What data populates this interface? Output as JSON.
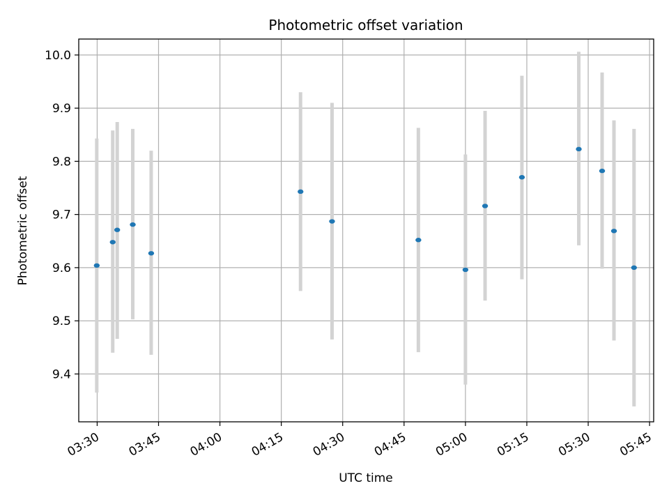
{
  "chart_data": {
    "type": "scatter",
    "title": "Photometric offset variation",
    "xlabel": "UTC time",
    "ylabel": "Photometric offset",
    "x_ticks": [
      "03:30",
      "03:45",
      "04:00",
      "04:15",
      "04:30",
      "04:45",
      "05:00",
      "05:15",
      "05:30",
      "05:45"
    ],
    "y_ticks": [
      "9.4",
      "9.5",
      "9.6",
      "9.7",
      "9.8",
      "9.9",
      "10.0"
    ],
    "xlim": [
      "03:25:30",
      "05:46:00"
    ],
    "ylim": [
      9.31,
      10.03
    ],
    "grid": true,
    "colors": {
      "point": "#1f77b4",
      "errorbar": "#d3d3d3",
      "grid": "#b0b0b0"
    },
    "series": [
      {
        "points": [
          {
            "x": "03:29:54",
            "y": 9.604,
            "ylow": 9.365,
            "yhigh": 9.843
          },
          {
            "x": "03:33:48",
            "y": 9.648,
            "ylow": 9.44,
            "yhigh": 9.858
          },
          {
            "x": "03:34:54",
            "y": 9.671,
            "ylow": 9.466,
            "yhigh": 9.874
          },
          {
            "x": "03:38:42",
            "y": 9.681,
            "ylow": 9.503,
            "yhigh": 9.861
          },
          {
            "x": "03:43:12",
            "y": 9.627,
            "ylow": 9.436,
            "yhigh": 9.82
          },
          {
            "x": "04:19:42",
            "y": 9.743,
            "ylow": 9.556,
            "yhigh": 9.93
          },
          {
            "x": "04:27:24",
            "y": 9.687,
            "ylow": 9.465,
            "yhigh": 9.91
          },
          {
            "x": "04:48:30",
            "y": 9.652,
            "ylow": 9.441,
            "yhigh": 9.863
          },
          {
            "x": "05:00:00",
            "y": 9.596,
            "ylow": 9.38,
            "yhigh": 9.813
          },
          {
            "x": "05:04:48",
            "y": 9.716,
            "ylow": 9.538,
            "yhigh": 9.895
          },
          {
            "x": "05:13:48",
            "y": 9.77,
            "ylow": 9.578,
            "yhigh": 9.961
          },
          {
            "x": "05:27:42",
            "y": 9.823,
            "ylow": 9.642,
            "yhigh": 10.006
          },
          {
            "x": "05:33:24",
            "y": 9.782,
            "ylow": 9.598,
            "yhigh": 9.967
          },
          {
            "x": "05:36:18",
            "y": 9.669,
            "ylow": 9.463,
            "yhigh": 9.877
          },
          {
            "x": "05:41:12",
            "y": 9.6,
            "ylow": 9.339,
            "yhigh": 9.861
          }
        ]
      }
    ]
  }
}
